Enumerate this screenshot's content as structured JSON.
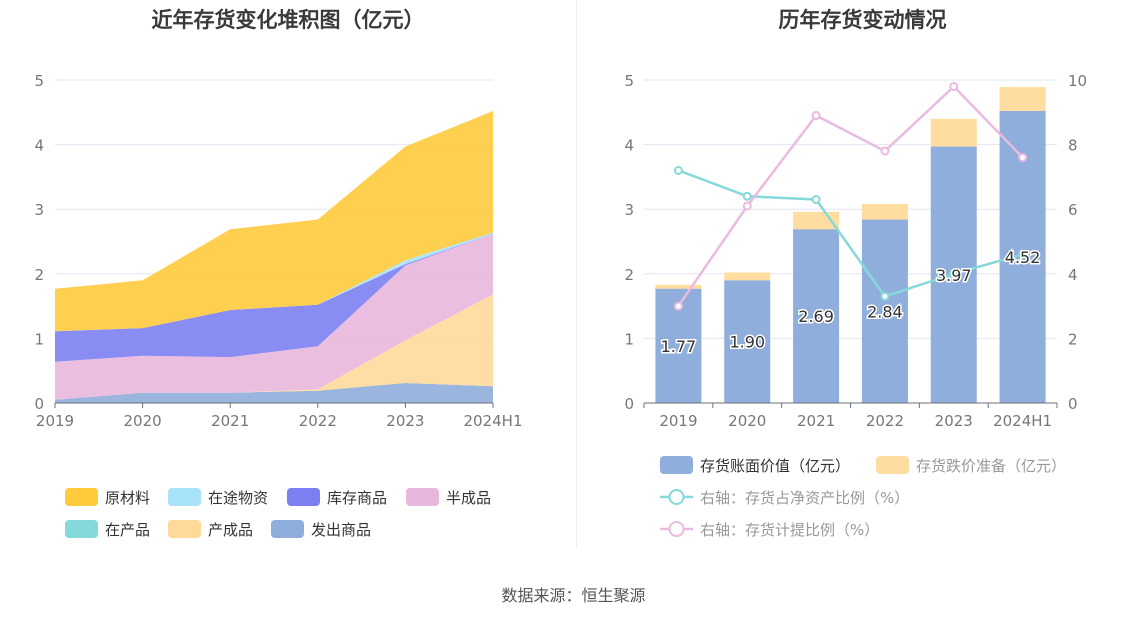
{
  "source": "数据来源：恒生聚源",
  "chart_data": [
    {
      "type": "area",
      "stacked": true,
      "title": "近年存货变化堆积图（亿元）",
      "categories": [
        "2019",
        "2020",
        "2021",
        "2022",
        "2023",
        "2024H1"
      ],
      "yticks": [
        "0",
        "1",
        "2",
        "3",
        "4",
        "5"
      ],
      "ylim": [
        0,
        5
      ],
      "legend_position": "bottom",
      "series": [
        {
          "name": "原材料",
          "color": "#FFCB3D",
          "values": [
            0.66,
            0.74,
            1.25,
            1.32,
            1.76,
            1.88
          ]
        },
        {
          "name": "在途物资",
          "color": "#A8E2F8",
          "values": [
            0,
            0,
            0,
            0,
            0.06,
            0.02
          ]
        },
        {
          "name": "库存商品",
          "color": "#7B7FF2",
          "values": [
            0.47,
            0.43,
            0.73,
            0.64,
            0.02,
            0
          ]
        },
        {
          "name": "半成品",
          "color": "#E9B7DC",
          "values": [
            0.59,
            0.57,
            0.55,
            0.67,
            1.16,
            0.94
          ]
        },
        {
          "name": "在产品",
          "color": "#86D9DB",
          "values": [
            0,
            0,
            0,
            0,
            0,
            0
          ]
        },
        {
          "name": "产成品",
          "color": "#FFD99A",
          "values": [
            0,
            0,
            0,
            0.02,
            0.66,
            1.42
          ]
        },
        {
          "name": "发出商品",
          "color": "#8FAEDB",
          "values": [
            0.05,
            0.16,
            0.16,
            0.19,
            0.31,
            0.26
          ]
        }
      ]
    },
    {
      "type": "bar",
      "stacked": true,
      "title": "历年存货变动情况",
      "categories": [
        "2019",
        "2020",
        "2021",
        "2022",
        "2023",
        "2024H1"
      ],
      "yticks_left": [
        "0",
        "1",
        "2",
        "3",
        "4",
        "5"
      ],
      "yticks_right": [
        "0",
        "2",
        "4",
        "6",
        "8",
        "10"
      ],
      "ylim_left": [
        0,
        5
      ],
      "ylim_right": [
        0,
        10
      ],
      "legend_position": "bottom",
      "bars": [
        {
          "name": "存货账面价值（亿元）",
          "color": "#8FAEDB",
          "values": [
            1.77,
            1.9,
            2.69,
            2.84,
            3.97,
            4.52
          ],
          "labels": [
            "1.77",
            "1.90",
            "2.69",
            "2.84",
            "3.97",
            "4.52"
          ]
        },
        {
          "name": "存货跌价准备（亿元）",
          "color": "#FFDDA0",
          "values": [
            0.06,
            0.12,
            0.27,
            0.24,
            0.43,
            0.37
          ]
        }
      ],
      "lines": [
        {
          "name": "右轴：存货占净资产比例（%）",
          "color": "#86D9DB",
          "values": [
            7.2,
            6.4,
            6.3,
            3.3,
            4.0,
            4.6
          ]
        },
        {
          "name": "右轴：存货计提比例（%）",
          "color": "#EABBE0",
          "values": [
            3.0,
            6.1,
            8.9,
            7.8,
            9.8,
            7.6
          ]
        }
      ]
    }
  ]
}
